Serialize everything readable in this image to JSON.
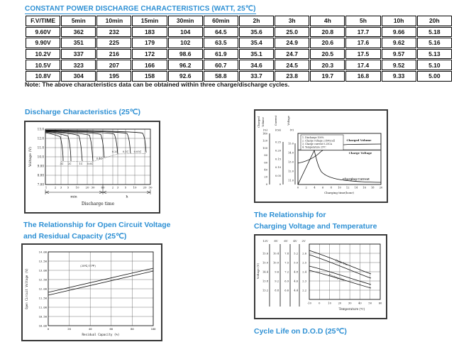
{
  "accent_color": "#2e90d4",
  "title": "CONSTANT POWER DISCHARGE CHARACTERISTICS (WATT, 25℃)",
  "note": "Note: The above characteristics data can be obtained within three charge/discharge cycles.",
  "table": {
    "headers": [
      "F.V/TIME",
      "5min",
      "10min",
      "15min",
      "30min",
      "60min",
      "2h",
      "3h",
      "4h",
      "5h",
      "10h",
      "20h"
    ],
    "rows": [
      [
        "9.60V",
        "362",
        "232",
        "183",
        "104",
        "64.5",
        "35.6",
        "25.0",
        "20.8",
        "17.7",
        "9.66",
        "5.18"
      ],
      [
        "9.90V",
        "351",
        "225",
        "179",
        "102",
        "63.5",
        "35.4",
        "24.9",
        "20.6",
        "17.6",
        "9.62",
        "5.16"
      ],
      [
        "10.2V",
        "337",
        "216",
        "172",
        "98.6",
        "61.9",
        "35.1",
        "24.7",
        "20.5",
        "17.5",
        "9.57",
        "5.13"
      ],
      [
        "10.5V",
        "323",
        "207",
        "166",
        "96.2",
        "60.7",
        "34.6",
        "24.5",
        "20.3",
        "17.4",
        "9.52",
        "5.10"
      ],
      [
        "10.8V",
        "304",
        "195",
        "158",
        "92.6",
        "58.8",
        "33.7",
        "23.8",
        "19.7",
        "16.8",
        "9.33",
        "5.00"
      ]
    ]
  },
  "headings": {
    "discharge": "Discharge Characteristics (25℃)",
    "ocv_line1": "The Relationship for Open Circuit Voltage",
    "ocv_line2": "and Residual Capacity (25℃)",
    "cvt_line1": "The Relationship for",
    "cvt_line2": "Charging Voltage and Temperature",
    "cycle_life": "Cycle Life on D.O.D (25℃)"
  },
  "charts": {
    "discharge": {
      "ylabel": "Voltage (V)",
      "xlabel": "Discharge time",
      "yticks": [
        "13.0",
        "12.0",
        "11.0",
        "10.0",
        "9.00",
        "8.00",
        "7.00"
      ],
      "xticks": [
        "1",
        "2",
        "3",
        "5",
        "10",
        "20",
        "30",
        "60",
        "2",
        "3",
        "5",
        "10",
        "20",
        "30"
      ],
      "group_min": "min",
      "group_h": "h",
      "curve_labels": [
        "3C",
        "2C",
        "1C",
        "0.6C",
        "0.4C",
        "0.2C",
        "0.1C",
        "0.05C"
      ]
    },
    "charge": {
      "axis_volume_w1": "Charged",
      "axis_volume_w2": "Volume",
      "axis_volume_unit": "(%)",
      "axis_current_title": "Current",
      "axis_current_unit": "(CA)",
      "axis_voltage_title": "Voltage",
      "axis_voltage_unit": "(V)",
      "volume_ticks": [
        "140",
        "120",
        "100",
        "80",
        "60",
        "40",
        "20",
        "0"
      ],
      "current_ticks": [
        "0.25",
        "0.20",
        "0.15",
        "0.10",
        "0.05",
        "0"
      ],
      "voltage_ticks": [
        "15.0",
        "14.0",
        "13.0",
        "12.0",
        "11.0"
      ],
      "xticks": [
        "0",
        "2",
        "4",
        "6",
        "8",
        "10",
        "12",
        "14",
        "16",
        "18",
        "20"
      ],
      "xlabel": "Charging time(hour)",
      "notes": [
        "1. Discharge 100%",
        "2. Charge voltage 2.40V/cell",
        "3. Charge current 0.25CA",
        "4. Temperature 25℃"
      ],
      "label_volume": "Charged Volume",
      "label_voltage": "Charge Voltage",
      "label_current": "Charging Current"
    },
    "ocv": {
      "ylabel": "Open Circuit Voltage (V)",
      "xlabel": "Residual Capacity (%)",
      "yticks": [
        "14.00",
        "13.50",
        "13.00",
        "12.50",
        "12.00",
        "11.50",
        "11.00",
        "10.50",
        "10.00"
      ],
      "xticks": [
        "0",
        "20",
        "40",
        "60",
        "80",
        "100"
      ],
      "annotation": "(25℃/77℉)"
    },
    "cvt": {
      "ylabel": "Voltage (V)",
      "xlabel": "Temperature (℃)",
      "scale_headers": [
        "12V",
        "8V",
        "6V",
        "4V",
        "2V"
      ],
      "scales": [
        [
          "15.6",
          "15.0",
          "14.4",
          "13.8",
          "13.2"
        ],
        [
          "10.4",
          "10.0",
          "9.6",
          "9.2",
          "8.8"
        ],
        [
          "7.8",
          "7.5",
          "7.2",
          "6.9",
          "6.6"
        ],
        [
          "5.2",
          "5.0",
          "4.8",
          "4.6",
          "4.4"
        ],
        [
          "2.6",
          "2.5",
          "2.4",
          "2.3",
          "2.2"
        ]
      ],
      "xticks": [
        "-10",
        "0",
        "10",
        "20",
        "30",
        "40",
        "50",
        "60"
      ],
      "label_cycle": "Cycle Use",
      "label_float": "Floating Use"
    }
  },
  "chart_data": [
    {
      "type": "line",
      "title": "Discharge Characteristics (25℃)",
      "xlabel": "Discharge time",
      "ylabel": "Voltage (V)",
      "x_scale": "log",
      "x_ticks_min": [
        1,
        2,
        3,
        5,
        10,
        20,
        30,
        60
      ],
      "x_ticks_h": [
        2,
        3,
        5,
        10,
        20,
        30
      ],
      "ylim": [
        7.0,
        13.0
      ],
      "series": [
        {
          "name": "3C",
          "start_v": 13.0,
          "approx_end_time_min": 6,
          "cutoff_v": 9.6
        },
        {
          "name": "2C",
          "start_v": 13.0,
          "approx_end_time_min": 13,
          "cutoff_v": 9.6
        },
        {
          "name": "1C",
          "start_v": 13.0,
          "approx_end_time_min": 30,
          "cutoff_v": 9.6
        },
        {
          "name": "0.6C",
          "start_v": 13.0,
          "approx_end_time_min": 55,
          "cutoff_v": 9.7
        },
        {
          "name": "0.4C",
          "start_v": 13.0,
          "approx_end_time_min": 100,
          "cutoff_v": 10.0
        },
        {
          "name": "0.2C",
          "start_v": 13.1,
          "approx_end_time_min": 240,
          "cutoff_v": 10.3
        },
        {
          "name": "0.1C",
          "start_v": 13.1,
          "approx_end_time_min": 540,
          "cutoff_v": 10.4
        },
        {
          "name": "0.05C",
          "start_v": 13.1,
          "approx_end_time_min": 1200,
          "cutoff_v": 10.5
        }
      ]
    },
    {
      "type": "line",
      "title": "Charge Characteristics",
      "xlabel": "Charging time(hour)",
      "x_range": [
        0,
        20
      ],
      "axes": {
        "charged_volume_pct": [
          0,
          140
        ],
        "current_ca": [
          0,
          0.25
        ],
        "voltage_v": [
          11.0,
          15.0
        ]
      },
      "conditions": [
        "Discharge 100%",
        "Charge voltage 2.40V/cell",
        "Charge current 0.25CA",
        "Temperature 25℃"
      ],
      "series": [
        {
          "name": "Charged Volume",
          "unit": "%",
          "points": [
            [
              0,
              55
            ],
            [
              2,
              70
            ],
            [
              4,
              92
            ],
            [
              6,
              103
            ],
            [
              10,
              110
            ],
            [
              20,
              114
            ]
          ]
        },
        {
          "name": "Charge Voltage",
          "unit": "V",
          "points": [
            [
              0,
              14.3
            ],
            [
              20,
              14.3
            ]
          ]
        },
        {
          "name": "Charging Current",
          "unit": "CA",
          "points": [
            [
              0,
              0
            ],
            [
              4,
              0.2
            ],
            [
              5,
              0.12
            ],
            [
              8,
              0.05
            ],
            [
              12,
              0.03
            ],
            [
              20,
              0.02
            ]
          ]
        }
      ]
    },
    {
      "type": "line",
      "title": "The Relationship for Open Circuit Voltage and Residual Capacity (25℃)",
      "xlabel": "Residual Capacity (%)",
      "ylabel": "Open Circuit Voltage (V)",
      "xlim": [
        0,
        100
      ],
      "ylim": [
        10.0,
        14.0
      ],
      "annotation": "(25℃/77℉)",
      "series": [
        {
          "name": "upper",
          "points": [
            [
              0,
              11.8
            ],
            [
              100,
              13.1
            ]
          ]
        },
        {
          "name": "lower",
          "points": [
            [
              0,
              11.65
            ],
            [
              100,
              12.95
            ]
          ]
        }
      ]
    },
    {
      "type": "line",
      "title": "The Relationship for Charging Voltage and Temperature",
      "xlabel": "Temperature (℃)",
      "ylabel": "Voltage (V)",
      "xlim": [
        -10,
        60
      ],
      "scales": {
        "12V": [
          15.6,
          15.0,
          14.4,
          13.8,
          13.2
        ],
        "8V": [
          10.4,
          10.0,
          9.6,
          9.2,
          8.8
        ],
        "6V": [
          7.8,
          7.5,
          7.2,
          6.9,
          6.6
        ],
        "4V": [
          5.2,
          5.0,
          4.8,
          4.6,
          4.4
        ],
        "2V": [
          2.6,
          2.5,
          2.4,
          2.3,
          2.2
        ]
      },
      "series": [
        {
          "name": "Cycle Use",
          "band_upper_2v": [
            [
              -10,
              2.62
            ],
            [
              50,
              2.38
            ]
          ],
          "band_lower_2v": [
            [
              -10,
              2.56
            ],
            [
              50,
              2.33
            ]
          ]
        },
        {
          "name": "Floating Use",
          "band_upper_2v": [
            [
              -10,
              2.44
            ],
            [
              50,
              2.28
            ]
          ],
          "band_lower_2v": [
            [
              -10,
              2.39
            ],
            [
              50,
              2.25
            ]
          ]
        }
      ]
    }
  ]
}
